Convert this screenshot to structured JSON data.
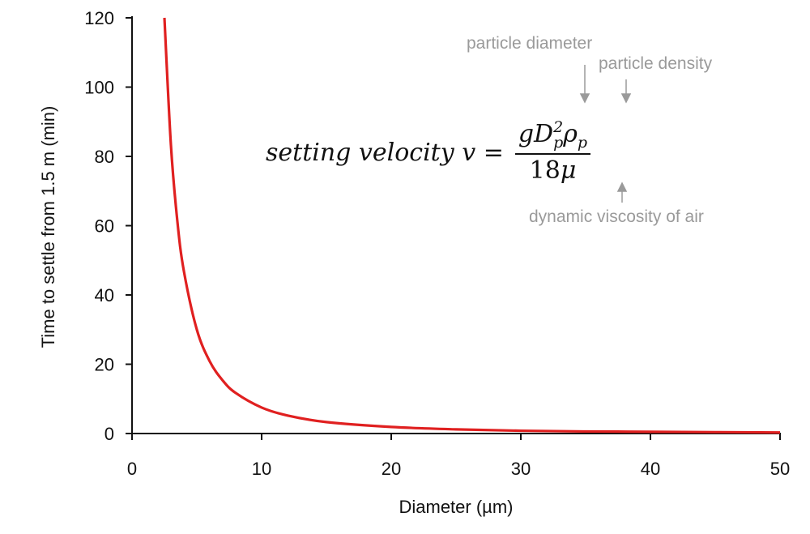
{
  "chart_data": {
    "type": "line",
    "title": "",
    "xlabel": "Diameter (µm)",
    "ylabel": "Time to settle from 1.5 m (min)",
    "xlim": [
      0,
      50
    ],
    "ylim": [
      0,
      120
    ],
    "xticks": [
      "0",
      "10",
      "20",
      "30",
      "40",
      "50"
    ],
    "yticks": [
      "0",
      "20",
      "40",
      "60",
      "80",
      "100",
      "120"
    ],
    "grid": false,
    "legend": "none",
    "series": [
      {
        "color": "#e02020",
        "x": [
          2.5,
          3,
          3.5,
          4,
          5,
          6,
          7,
          8,
          10,
          12,
          15,
          20,
          25,
          30,
          35,
          40,
          45,
          50
        ],
        "y": [
          120,
          83.3,
          61.2,
          46.9,
          30,
          20.8,
          15.3,
          11.7,
          7.5,
          5.2,
          3.3,
          1.9,
          1.2,
          0.8,
          0.6,
          0.5,
          0.4,
          0.3
        ]
      }
    ],
    "annotations": {
      "equation": {
        "lhs": "setting velocity v =",
        "num_g": "gD",
        "num_sup": "2",
        "num_sub": "p",
        "num_rho": "ρ",
        "num_rho_sub": "p",
        "den_num": "18",
        "den_mu": "μ"
      },
      "particle_diameter": "particle diameter",
      "particle_density": "particle density",
      "dynamic_viscosity": "dynamic viscosity of air"
    }
  }
}
